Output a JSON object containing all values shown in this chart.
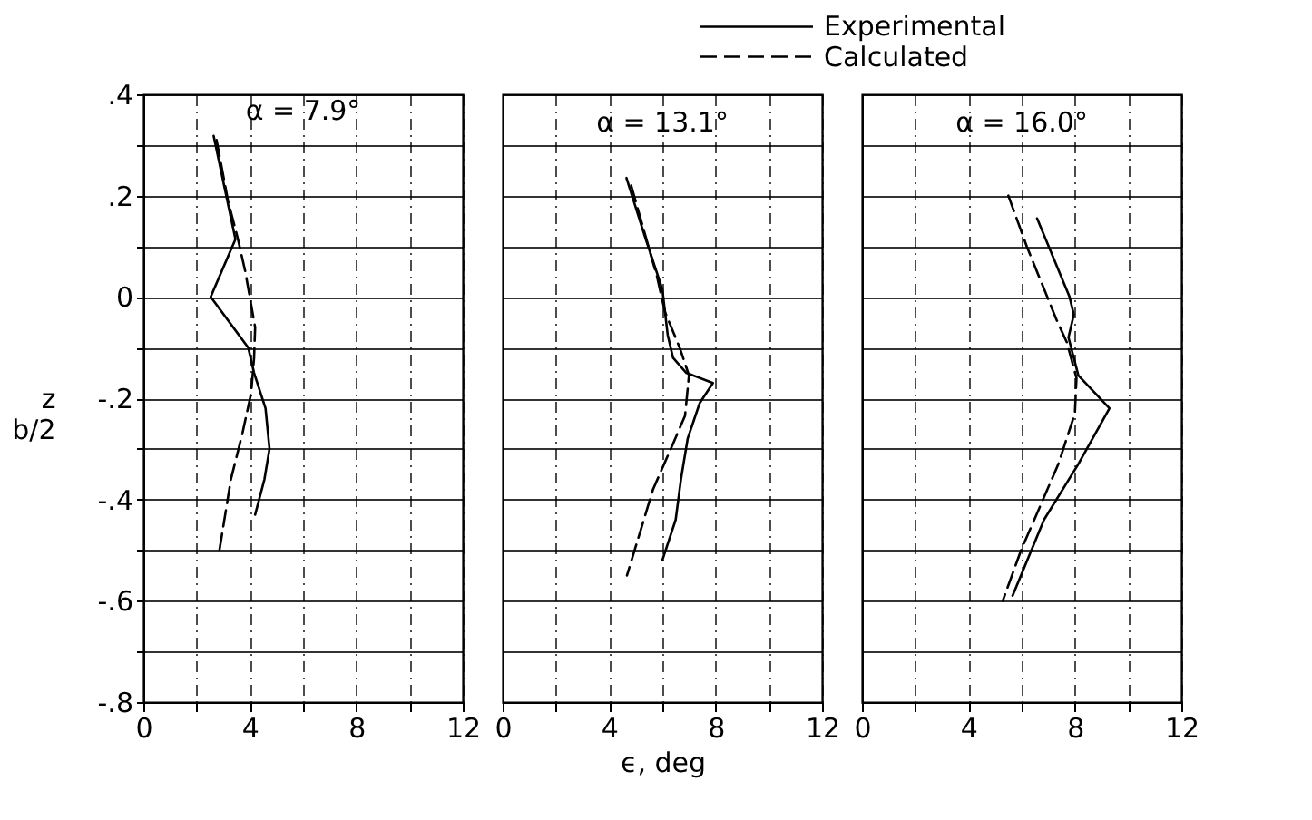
{
  "chart_data": [
    {
      "type": "line",
      "title": "α = 7.9°",
      "ylabel": "z\nb/2",
      "xlim": [
        0,
        12
      ],
      "ylim": [
        -0.8,
        0.4
      ],
      "xticks": [
        0,
        {
          "value": 2,
          "label": null
        },
        4,
        {
          "value": 6,
          "label": null
        },
        8,
        {
          "value": 10,
          "label": null
        },
        12
      ],
      "yticks": [
        {
          "value": -0.8,
          "label": "-.8"
        },
        {
          "value": -0.7,
          "label": null
        },
        {
          "value": -0.6,
          "label": "-.6"
        },
        {
          "value": -0.5,
          "label": null
        },
        {
          "value": -0.4,
          "label": "-.4"
        },
        {
          "value": -0.3,
          "label": null
        },
        {
          "value": -0.2,
          "label": "-.2"
        },
        {
          "value": -0.1,
          "label": null
        },
        0,
        {
          "value": 0.1,
          "label": null
        },
        {
          "value": 0.2,
          "label": ".2"
        },
        {
          "value": 0.3,
          "label": null
        },
        {
          "value": 0.4,
          "label": ".4"
        }
      ],
      "grid": true,
      "series": [
        {
          "color": "#000000",
          "line_style": "solid",
          "x": [
            2.64,
            3.46,
            2.53,
            3.94,
            4.16,
            4.59,
            4.74,
            4.55,
            4.2
          ],
          "values": [
            0.318,
            0.114,
            0.0,
            -0.1,
            -0.15,
            -0.22,
            -0.3,
            -0.36,
            -0.43
          ]
        },
        {
          "color": "#000000",
          "line_style": "dashed",
          "x": [
            2.75,
            3.18,
            3.55,
            3.83,
            4.2,
            4.16,
            4.05,
            3.72,
            3.29,
            2.86
          ],
          "values": [
            0.31,
            0.19,
            0.115,
            0.05,
            -0.06,
            -0.12,
            -0.19,
            -0.27,
            -0.36,
            -0.5
          ]
        }
      ]
    },
    {
      "type": "line",
      "title": "α = 13.1°",
      "xlabel": "ϵ, deg",
      "xlim": [
        0,
        12
      ],
      "ylim": [
        -0.8,
        0.4
      ],
      "tick_labels": "x",
      "legend": "top",
      "xticks": [
        0,
        {
          "value": 2,
          "label": null
        },
        4,
        {
          "value": 6,
          "label": null
        },
        8,
        {
          "value": 10,
          "label": null
        },
        12
      ],
      "yticks": [
        -0.8,
        -0.7,
        -0.6,
        -0.5,
        -0.4,
        -0.3,
        -0.2,
        -0.1,
        0,
        0.1,
        0.2,
        0.3,
        0.4
      ],
      "grid": true,
      "series": [
        {
          "name": "Experimental",
          "color": "#000000",
          "line_style": "solid",
          "x": [
            4.65,
            5.37,
            6.0,
            6.2,
            6.4,
            6.9,
            7.9,
            7.4,
            6.95,
            6.7,
            6.5,
            6.0
          ],
          "values": [
            0.235,
            0.115,
            0.015,
            -0.075,
            -0.12,
            -0.15,
            -0.17,
            -0.21,
            -0.28,
            -0.36,
            -0.44,
            -0.52
          ]
        },
        {
          "name": "Calculated",
          "color": "#000000",
          "line_style": "dashed",
          "x": [
            4.83,
            5.8,
            6.1,
            6.65,
            7.0,
            6.85,
            6.4,
            5.65,
            4.67
          ],
          "values": [
            0.22,
            0.04,
            -0.03,
            -0.1,
            -0.155,
            -0.235,
            -0.29,
            -0.38,
            -0.55
          ]
        }
      ]
    },
    {
      "type": "line",
      "title": "α = 16.0°",
      "xlim": [
        0,
        12
      ],
      "ylim": [
        -0.8,
        0.4
      ],
      "tick_labels": "x",
      "xticks": [
        0,
        {
          "value": 2,
          "label": null
        },
        4,
        {
          "value": 6,
          "label": null
        },
        8,
        {
          "value": 10,
          "label": null
        },
        12
      ],
      "yticks": [
        -0.8,
        -0.7,
        -0.6,
        -0.5,
        -0.4,
        -0.3,
        -0.2,
        -0.1,
        0,
        0.1,
        0.2,
        0.3,
        0.4
      ],
      "grid": true,
      "series": [
        {
          "color": "#000000",
          "line_style": "solid",
          "x": [
            6.58,
            7.8,
            7.96,
            7.76,
            8.13,
            9.3,
            8.13,
            6.84,
            5.66
          ],
          "values": [
            0.155,
            0.0,
            -0.035,
            -0.08,
            -0.155,
            -0.22,
            -0.33,
            -0.44,
            -0.59
          ]
        },
        {
          "color": "#000000",
          "line_style": "dashed",
          "x": [
            5.5,
            6.19,
            7.31,
            7.7,
            8.06,
            8.0,
            7.38,
            5.98,
            5.29
          ],
          "values": [
            0.2,
            0.1,
            -0.045,
            -0.09,
            -0.16,
            -0.23,
            -0.33,
            -0.5,
            -0.6
          ]
        }
      ]
    }
  ]
}
